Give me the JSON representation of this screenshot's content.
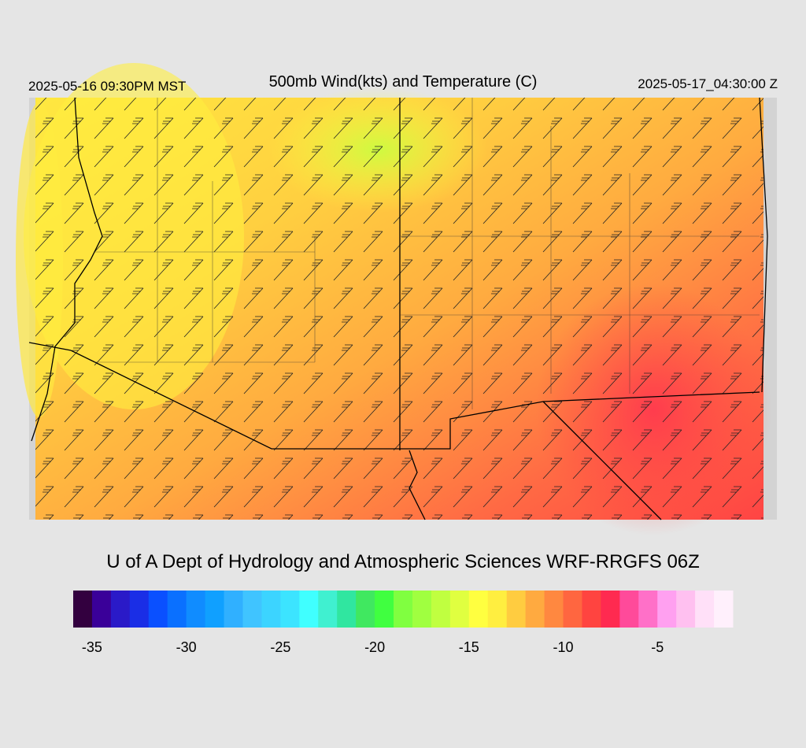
{
  "header": {
    "left": "2025-05-16 09:30PM MST",
    "title": "500mb Wind(kts) and Temperature (C)",
    "right": "2025-05-17_04:30:00 Z"
  },
  "credit": "U of A Dept of Hydrology and Atmospheric Sciences WRF-RRGFS 06Z",
  "colorbar": {
    "bounds": [
      -36,
      -1
    ],
    "ticks": [
      -35,
      -30,
      -25,
      -20,
      -15,
      -10,
      -5
    ],
    "colors": [
      "#33003f",
      "#3a0099",
      "#2a1ac8",
      "#1a2ee6",
      "#0a50ff",
      "#0a70ff",
      "#108cff",
      "#10a0ff",
      "#30b0ff",
      "#40c4ff",
      "#3cd4ff",
      "#3ce4ff",
      "#40ffff",
      "#40f0d0",
      "#30e6a0",
      "#40e860",
      "#40ff40",
      "#80ff40",
      "#a0ff40",
      "#c0ff40",
      "#e0ff40",
      "#ffff40",
      "#ffee40",
      "#ffcc40",
      "#ffaa40",
      "#ff8840",
      "#ff6640",
      "#ff4440",
      "#ff2a50",
      "#ff4a9a",
      "#ff70c8",
      "#ffa0f0",
      "#ffc0f0",
      "#ffe0f8",
      "#fff0fc"
    ]
  }
}
